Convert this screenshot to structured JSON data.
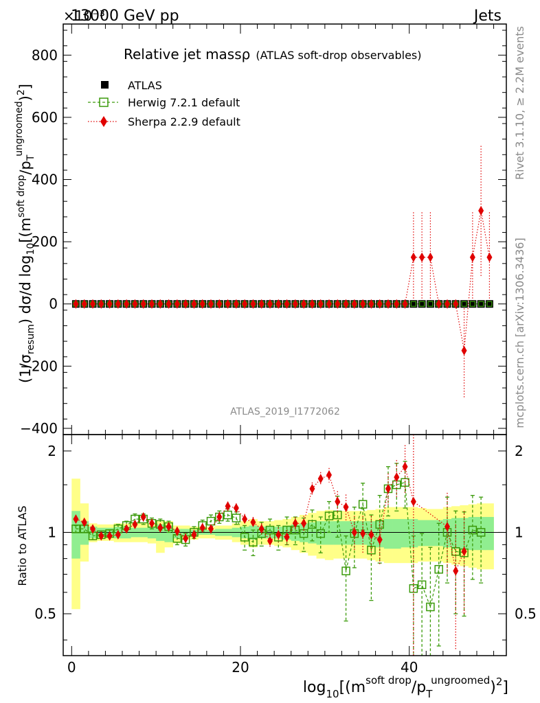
{
  "header": {
    "left_title": "13000 GeV pp",
    "right_title": "Jets",
    "exponent_label": "×10⁻³"
  },
  "side_labels": {
    "rivet": "Rivet 3.1.10, ≥ 2.2M events",
    "mcplots": "mcplots.cern.ch [arXiv:1306.3436]"
  },
  "watermark": "ATLAS_2019_I1772062",
  "colors": {
    "atlas": "#000000",
    "herwig": "#3a9a0a",
    "sherpa": "#e00000",
    "band_inner": "#90ee90",
    "band_outer": "#ffff88"
  },
  "chart_data": [
    {
      "type": "scatter",
      "title": "Relative jet massρ",
      "subtitle": "(ATLAS soft-drop observables)",
      "ylabel": "(1/σresum) dσ/d log10[(m soft drop/pT ungroomed)2]",
      "ylabel_parts": {
        "prefix": "(1/σ",
        "resum": "resum",
        "mid": ") dσ/d log",
        "ten": "10",
        "bracket": "[(m",
        "sd": "soft drop",
        "slash": "/p",
        "t": "T",
        "ungroomed": "ungroomed",
        "close": ")",
        "two": "2",
        "end": "]"
      },
      "ylim": [
        -420,
        900
      ],
      "yticks": [
        -400,
        -200,
        0,
        200,
        400,
        600,
        800
      ],
      "yticklabels": [
        "−400",
        "−200",
        "0",
        "200",
        "400",
        "600",
        "800"
      ],
      "xlim": [
        -1.0,
        51.5
      ],
      "legend": [
        {
          "name": "ATLAS",
          "marker": "filled-square"
        },
        {
          "name": "Herwig 7.2.1 default",
          "marker": "open-square-dashed"
        },
        {
          "name": "Sherpa 2.2.9 default",
          "marker": "diamond-dotted"
        }
      ],
      "series": [
        {
          "name": "ATLAS",
          "x_start": 0.5,
          "x_step": 1,
          "count": 50,
          "values": [
            0,
            0,
            0,
            0,
            0,
            0,
            0,
            0,
            0,
            0,
            0,
            0,
            0,
            0,
            0,
            0,
            0,
            0,
            0,
            0,
            0,
            0,
            0,
            0,
            0,
            0,
            0,
            0,
            0,
            0,
            0,
            0,
            0,
            0,
            0,
            0,
            0,
            0,
            0,
            0,
            0,
            0,
            0,
            0,
            0,
            0,
            0,
            0,
            0,
            0
          ]
        },
        {
          "name": "Herwig 7.2.1 default",
          "x_start": 0.5,
          "x_step": 1,
          "count": 50,
          "values": [
            0,
            0,
            0,
            0,
            0,
            0,
            0,
            0,
            0,
            0,
            0,
            0,
            0,
            0,
            0,
            0,
            0,
            0,
            0,
            0,
            0,
            0,
            0,
            0,
            0,
            0,
            0,
            0,
            0,
            0,
            0,
            0,
            0,
            0,
            0,
            0,
            0,
            0,
            0,
            0,
            0,
            0,
            0,
            0,
            0,
            0,
            0,
            0,
            0,
            0
          ]
        },
        {
          "name": "Sherpa 2.2.9 default",
          "points": [
            [
              40.5,
              150
            ],
            [
              41.5,
              150
            ],
            [
              42.5,
              150
            ],
            [
              46.5,
              -150
            ],
            [
              47.5,
              150
            ],
            [
              48.5,
              300
            ],
            [
              49.5,
              150
            ]
          ],
          "errors": [
            [
              40.5,
              150
            ],
            [
              41.5,
              150
            ],
            [
              42.5,
              150
            ],
            [
              46.5,
              150
            ],
            [
              47.5,
              150
            ],
            [
              48.5,
              210
            ],
            [
              49.5,
              150
            ]
          ]
        }
      ]
    },
    {
      "type": "ratio",
      "ylabel": "Ratio to ATLAS",
      "ylim": [
        0.35,
        2.3
      ],
      "yticks": [
        0.5,
        1,
        2
      ],
      "yticklabels": [
        "0.5",
        "1",
        "2"
      ],
      "xlim": [
        -1.0,
        51.5
      ],
      "xticks": [
        0,
        20,
        40
      ],
      "xticklabels": [
        "0",
        "20",
        "40"
      ],
      "xlabel_parts": {
        "log": "log",
        "ten": "10",
        "bracket": "[(m",
        "sd": "soft drop",
        "slash": "/p",
        "t": "T",
        "ungroomed": "ungroomed",
        "close": ")",
        "two": "2",
        "end": "]"
      },
      "bin_start": 0,
      "bin_width": 1,
      "band_inner": [
        [
          0.8,
          1.2
        ],
        [
          0.9,
          1.1
        ],
        [
          0.95,
          1.05
        ],
        [
          0.96,
          1.04
        ],
        [
          0.96,
          1.04
        ],
        [
          0.95,
          1.05
        ],
        [
          0.95,
          1.05
        ],
        [
          0.96,
          1.04
        ],
        [
          0.96,
          1.04
        ],
        [
          0.95,
          1.05
        ],
        [
          0.93,
          1.07
        ],
        [
          0.92,
          1.06
        ],
        [
          0.95,
          1.03
        ],
        [
          0.97,
          1.03
        ],
        [
          0.97,
          1.02
        ],
        [
          0.98,
          1.02
        ],
        [
          0.98,
          1.02
        ],
        [
          0.97,
          1.03
        ],
        [
          0.97,
          1.03
        ],
        [
          0.96,
          1.04
        ],
        [
          0.95,
          1.05
        ],
        [
          0.94,
          1.06
        ],
        [
          0.95,
          1.05
        ],
        [
          0.95,
          1.05
        ],
        [
          0.95,
          1.05
        ],
        [
          0.94,
          1.06
        ],
        [
          0.93,
          1.07
        ],
        [
          0.92,
          1.08
        ],
        [
          0.91,
          1.09
        ],
        [
          0.9,
          1.1
        ],
        [
          0.9,
          1.1
        ],
        [
          0.9,
          1.1
        ],
        [
          0.9,
          1.1
        ],
        [
          0.9,
          1.1
        ],
        [
          0.9,
          1.1
        ],
        [
          0.89,
          1.1
        ],
        [
          0.88,
          1.11
        ],
        [
          0.87,
          1.12
        ],
        [
          0.87,
          1.12
        ],
        [
          0.88,
          1.12
        ],
        [
          0.88,
          1.12
        ],
        [
          0.89,
          1.11
        ],
        [
          0.89,
          1.11
        ],
        [
          0.89,
          1.11
        ],
        [
          0.88,
          1.12
        ],
        [
          0.87,
          1.13
        ],
        [
          0.87,
          1.13
        ],
        [
          0.86,
          1.14
        ],
        [
          0.86,
          1.14
        ],
        [
          0.86,
          1.14
        ]
      ],
      "band_outer": [
        [
          0.52,
          1.58
        ],
        [
          0.78,
          1.28
        ],
        [
          0.92,
          1.08
        ],
        [
          0.93,
          1.07
        ],
        [
          0.93,
          1.07
        ],
        [
          0.92,
          1.08
        ],
        [
          0.92,
          1.08
        ],
        [
          0.92,
          1.08
        ],
        [
          0.92,
          1.08
        ],
        [
          0.91,
          1.08
        ],
        [
          0.84,
          1.1
        ],
        [
          0.88,
          1.1
        ],
        [
          0.91,
          1.06
        ],
        [
          0.94,
          1.06
        ],
        [
          0.94,
          1.05
        ],
        [
          0.95,
          1.05
        ],
        [
          0.95,
          1.05
        ],
        [
          0.94,
          1.06
        ],
        [
          0.94,
          1.06
        ],
        [
          0.92,
          1.08
        ],
        [
          0.9,
          1.1
        ],
        [
          0.88,
          1.12
        ],
        [
          0.9,
          1.1
        ],
        [
          0.9,
          1.1
        ],
        [
          0.89,
          1.11
        ],
        [
          0.88,
          1.12
        ],
        [
          0.86,
          1.14
        ],
        [
          0.84,
          1.16
        ],
        [
          0.82,
          1.18
        ],
        [
          0.8,
          1.2
        ],
        [
          0.79,
          1.21
        ],
        [
          0.8,
          1.2
        ],
        [
          0.8,
          1.2
        ],
        [
          0.8,
          1.2
        ],
        [
          0.8,
          1.2
        ],
        [
          0.79,
          1.21
        ],
        [
          0.78,
          1.22
        ],
        [
          0.77,
          1.24
        ],
        [
          0.77,
          1.24
        ],
        [
          0.77,
          1.24
        ],
        [
          0.77,
          1.24
        ],
        [
          0.78,
          1.23
        ],
        [
          0.78,
          1.22
        ],
        [
          0.78,
          1.22
        ],
        [
          0.77,
          1.24
        ],
        [
          0.76,
          1.25
        ],
        [
          0.75,
          1.26
        ],
        [
          0.74,
          1.27
        ],
        [
          0.73,
          1.28
        ],
        [
          0.73,
          1.28
        ]
      ],
      "series": [
        {
          "name": "Herwig 7.2.1 default",
          "style": "herwig",
          "points": [
            [
              0.5,
              1.03
            ],
            [
              1.5,
              1.03
            ],
            [
              2.5,
              0.97
            ],
            [
              3.5,
              0.98
            ],
            [
              4.5,
              0.99
            ],
            [
              5.5,
              1.03
            ],
            [
              6.5,
              1.06
            ],
            [
              7.5,
              1.12
            ],
            [
              8.5,
              1.12
            ],
            [
              9.5,
              1.08
            ],
            [
              10.5,
              1.07
            ],
            [
              11.5,
              1.05
            ],
            [
              12.5,
              0.95
            ],
            [
              13.5,
              0.94
            ],
            [
              14.5,
              1.0
            ],
            [
              15.5,
              1.06
            ],
            [
              16.5,
              1.1
            ],
            [
              17.5,
              1.14
            ],
            [
              18.5,
              1.16
            ],
            [
              19.5,
              1.13
            ],
            [
              20.5,
              0.96
            ],
            [
              21.5,
              0.92
            ],
            [
              22.5,
              0.99
            ],
            [
              23.5,
              1.02
            ],
            [
              24.5,
              0.96
            ],
            [
              25.5,
              1.02
            ],
            [
              26.5,
              1.02
            ],
            [
              27.5,
              0.99
            ],
            [
              28.5,
              1.07
            ],
            [
              29.5,
              0.99
            ],
            [
              30.5,
              1.15
            ],
            [
              31.5,
              1.16
            ],
            [
              32.5,
              0.72
            ],
            [
              33.5,
              0.99
            ],
            [
              34.5,
              1.27
            ],
            [
              35.5,
              0.86
            ],
            [
              36.5,
              1.07
            ],
            [
              37.5,
              1.45
            ],
            [
              38.5,
              1.5
            ],
            [
              39.5,
              1.53
            ],
            [
              40.5,
              0.62
            ],
            [
              41.5,
              0.64
            ],
            [
              42.5,
              0.53
            ],
            [
              43.5,
              0.73
            ],
            [
              44.5,
              1.0
            ],
            [
              45.5,
              0.85
            ],
            [
              46.5,
              0.84
            ],
            [
              47.5,
              1.02
            ],
            [
              48.5,
              1.0
            ]
          ],
          "errors": [
            0.03,
            0.03,
            0.03,
            0.03,
            0.03,
            0.04,
            0.04,
            0.05,
            0.05,
            0.05,
            0.05,
            0.05,
            0.05,
            0.05,
            0.05,
            0.05,
            0.06,
            0.06,
            0.06,
            0.06,
            0.1,
            0.1,
            0.1,
            0.1,
            0.1,
            0.12,
            0.12,
            0.14,
            0.14,
            0.15,
            0.15,
            0.2,
            0.25,
            0.25,
            0.25,
            0.3,
            0.3,
            0.3,
            0.3,
            0.3,
            0.35,
            0.35,
            0.35,
            0.35,
            0.35,
            0.35,
            0.35,
            0.35,
            0.35
          ]
        },
        {
          "name": "Sherpa 2.2.9 default",
          "style": "sherpa",
          "points": [
            [
              0.5,
              1.12
            ],
            [
              1.5,
              1.09
            ],
            [
              2.5,
              1.03
            ],
            [
              3.5,
              0.97
            ],
            [
              4.5,
              0.97
            ],
            [
              5.5,
              0.98
            ],
            [
              6.5,
              1.03
            ],
            [
              7.5,
              1.07
            ],
            [
              8.5,
              1.14
            ],
            [
              9.5,
              1.08
            ],
            [
              10.5,
              1.04
            ],
            [
              11.5,
              1.05
            ],
            [
              12.5,
              1.01
            ],
            [
              13.5,
              0.95
            ],
            [
              14.5,
              0.98
            ],
            [
              15.5,
              1.04
            ],
            [
              16.5,
              1.03
            ],
            [
              17.5,
              1.14
            ],
            [
              18.5,
              1.25
            ],
            [
              19.5,
              1.23
            ],
            [
              20.5,
              1.12
            ],
            [
              21.5,
              1.09
            ],
            [
              22.5,
              1.03
            ],
            [
              23.5,
              0.93
            ],
            [
              24.5,
              0.98
            ],
            [
              25.5,
              0.96
            ],
            [
              26.5,
              1.08
            ],
            [
              27.5,
              1.08
            ],
            [
              28.5,
              1.45
            ],
            [
              29.5,
              1.58
            ],
            [
              30.5,
              1.63
            ],
            [
              31.5,
              1.3
            ],
            [
              32.5,
              1.24
            ],
            [
              33.5,
              1.0
            ],
            [
              34.5,
              0.99
            ],
            [
              35.5,
              0.98
            ],
            [
              36.5,
              0.94
            ],
            [
              37.5,
              1.45
            ],
            [
              38.5,
              1.6
            ],
            [
              39.5,
              1.75
            ],
            [
              40.5,
              1.3
            ],
            [
              44.5,
              1.05
            ],
            [
              45.5,
              0.72
            ],
            [
              46.5,
              0.85
            ]
          ],
          "errors": [
            0.03,
            0.03,
            0.03,
            0.03,
            0.03,
            0.03,
            0.03,
            0.03,
            0.04,
            0.04,
            0.04,
            0.04,
            0.04,
            0.04,
            0.04,
            0.04,
            0.04,
            0.05,
            0.05,
            0.05,
            0.05,
            0.05,
            0.05,
            0.05,
            0.06,
            0.06,
            0.06,
            0.07,
            0.08,
            0.09,
            0.1,
            0.12,
            0.14,
            0.15,
            0.16,
            0.17,
            0.18,
            0.2,
            0.25,
            0.35,
            1.0,
            0.35,
            0.35,
            0.35
          ]
        }
      ]
    }
  ]
}
